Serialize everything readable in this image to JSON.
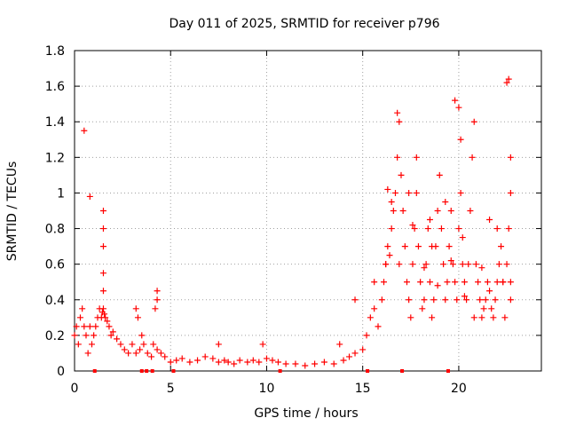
{
  "chart_data": {
    "type": "scatter",
    "title": "Day 011 of 2025, SRMTID for receiver p796",
    "xlabel": "GPS time / hours",
    "ylabel": "SRMTID / TECUs",
    "xlim": [
      0,
      24.3
    ],
    "ylim": [
      0,
      1.8
    ],
    "xticks": [
      0,
      5,
      10,
      15,
      20
    ],
    "yticks": [
      0,
      0.2,
      0.4,
      0.6,
      0.8,
      1,
      1.2,
      1.4,
      1.6,
      1.8
    ],
    "xtick_labels": [
      "0",
      "5",
      "10",
      "15",
      "20"
    ],
    "ytick_labels": [
      "0",
      "0.2",
      "0.4",
      "0.6",
      "0.8",
      "1",
      "1.2",
      "1.4",
      "1.6",
      "1.8"
    ],
    "grid": true,
    "series": [
      {
        "name": "SRMTID",
        "marker": "plus",
        "color": "#ff0000",
        "x": [
          0.0,
          0.1,
          0.2,
          0.3,
          0.4,
          0.5,
          0.6,
          0.7,
          0.8,
          0.9,
          1.0,
          1.1,
          1.2,
          1.3,
          1.4,
          1.45,
          1.5,
          1.55,
          1.6,
          1.7,
          1.8,
          1.9,
          2.0,
          2.2,
          2.4,
          2.6,
          2.8,
          3.0,
          3.2,
          3.4,
          3.5,
          3.6,
          3.8,
          4.0,
          4.1,
          4.2,
          4.3,
          4.5,
          4.7,
          5.0,
          5.3,
          5.6,
          6.0,
          6.4,
          6.8,
          7.2,
          7.5,
          7.8,
          8.0,
          8.3,
          8.6,
          9.0,
          9.3,
          9.6,
          10.0,
          10.3,
          10.6,
          11.0,
          11.5,
          12.0,
          12.5,
          13.0,
          13.5,
          14.0,
          14.3,
          14.6,
          15.0,
          15.2,
          15.4,
          15.6,
          15.8,
          16.0,
          16.1,
          16.2,
          16.3,
          16.4,
          16.5,
          16.6,
          16.7,
          16.8,
          16.9,
          17.0,
          17.1,
          17.2,
          17.3,
          17.4,
          17.5,
          17.6,
          17.7,
          17.8,
          17.9,
          18.0,
          18.1,
          18.2,
          18.3,
          18.4,
          18.5,
          18.6,
          18.7,
          18.8,
          18.9,
          19.0,
          19.1,
          19.2,
          19.3,
          19.4,
          19.5,
          19.6,
          19.7,
          19.8,
          19.9,
          20.0,
          20.1,
          20.2,
          20.3,
          20.4,
          20.5,
          20.6,
          20.7,
          20.8,
          20.9,
          21.0,
          21.1,
          21.2,
          21.3,
          21.4,
          21.5,
          21.6,
          21.7,
          21.8,
          21.9,
          22.0,
          22.1,
          22.2,
          22.3,
          22.4,
          22.5,
          22.6,
          22.7,
          22.7,
          22.7,
          22.7,
          0.5,
          0.8,
          1.5,
          1.5,
          1.5,
          1.5,
          1.5,
          3.2,
          3.3,
          4.3,
          4.3,
          7.5,
          9.8,
          13.8,
          14.6,
          15.6,
          16.2,
          16.3,
          16.5,
          16.8,
          16.9,
          17.4,
          17.6,
          17.8,
          18.2,
          18.5,
          18.6,
          18.9,
          19.3,
          19.6,
          19.8,
          20.0,
          20.1,
          20.2,
          20.3,
          20.8,
          21.2,
          21.6,
          22.0,
          22.3,
          22.5,
          22.6
        ],
        "y": [
          0.2,
          0.25,
          0.15,
          0.3,
          0.35,
          0.25,
          0.2,
          0.1,
          0.25,
          0.15,
          0.2,
          0.25,
          0.3,
          0.35,
          0.3,
          0.33,
          0.35,
          0.32,
          0.3,
          0.28,
          0.25,
          0.2,
          0.22,
          0.18,
          0.15,
          0.12,
          0.1,
          0.15,
          0.1,
          0.12,
          0.2,
          0.15,
          0.1,
          0.08,
          0.15,
          0.35,
          0.12,
          0.1,
          0.08,
          0.05,
          0.06,
          0.07,
          0.05,
          0.06,
          0.08,
          0.07,
          0.05,
          0.06,
          0.05,
          0.04,
          0.06,
          0.05,
          0.06,
          0.05,
          0.07,
          0.06,
          0.05,
          0.04,
          0.04,
          0.03,
          0.04,
          0.05,
          0.04,
          0.06,
          0.08,
          0.1,
          0.12,
          0.2,
          0.3,
          0.35,
          0.25,
          0.4,
          0.5,
          0.6,
          0.7,
          0.65,
          0.8,
          0.9,
          1.0,
          1.2,
          1.4,
          1.1,
          0.9,
          0.7,
          0.5,
          0.4,
          0.3,
          0.6,
          0.8,
          1.0,
          0.7,
          0.5,
          0.35,
          0.4,
          0.6,
          0.8,
          0.5,
          0.3,
          0.4,
          0.7,
          0.9,
          1.1,
          0.8,
          0.6,
          0.4,
          0.5,
          0.7,
          0.9,
          0.6,
          0.5,
          0.4,
          0.8,
          1.0,
          0.6,
          0.5,
          0.4,
          0.6,
          0.9,
          1.2,
          1.4,
          0.6,
          0.5,
          0.4,
          0.3,
          0.35,
          0.4,
          0.5,
          0.45,
          0.35,
          0.3,
          0.4,
          0.5,
          0.6,
          0.7,
          0.5,
          0.3,
          0.6,
          0.8,
          0.4,
          0.5,
          1.0,
          1.2,
          1.35,
          0.98,
          0.9,
          0.8,
          0.7,
          0.55,
          0.45,
          0.35,
          0.3,
          0.4,
          0.45,
          0.15,
          0.15,
          0.15,
          0.4,
          0.5,
          0.6,
          1.02,
          0.95,
          1.45,
          0.6,
          1.0,
          0.82,
          1.2,
          0.58,
          0.85,
          0.7,
          0.48,
          0.95,
          0.62,
          1.52,
          1.48,
          1.3,
          0.75,
          0.42,
          0.3,
          0.58,
          0.85,
          0.8,
          0.5,
          1.62,
          1.64
        ]
      }
    ],
    "zero_markers": {
      "color": "#ff0000",
      "x": [
        1.05,
        3.5,
        3.75,
        4.05,
        5.15,
        10.7,
        15.25,
        17.05,
        19.45
      ]
    }
  }
}
